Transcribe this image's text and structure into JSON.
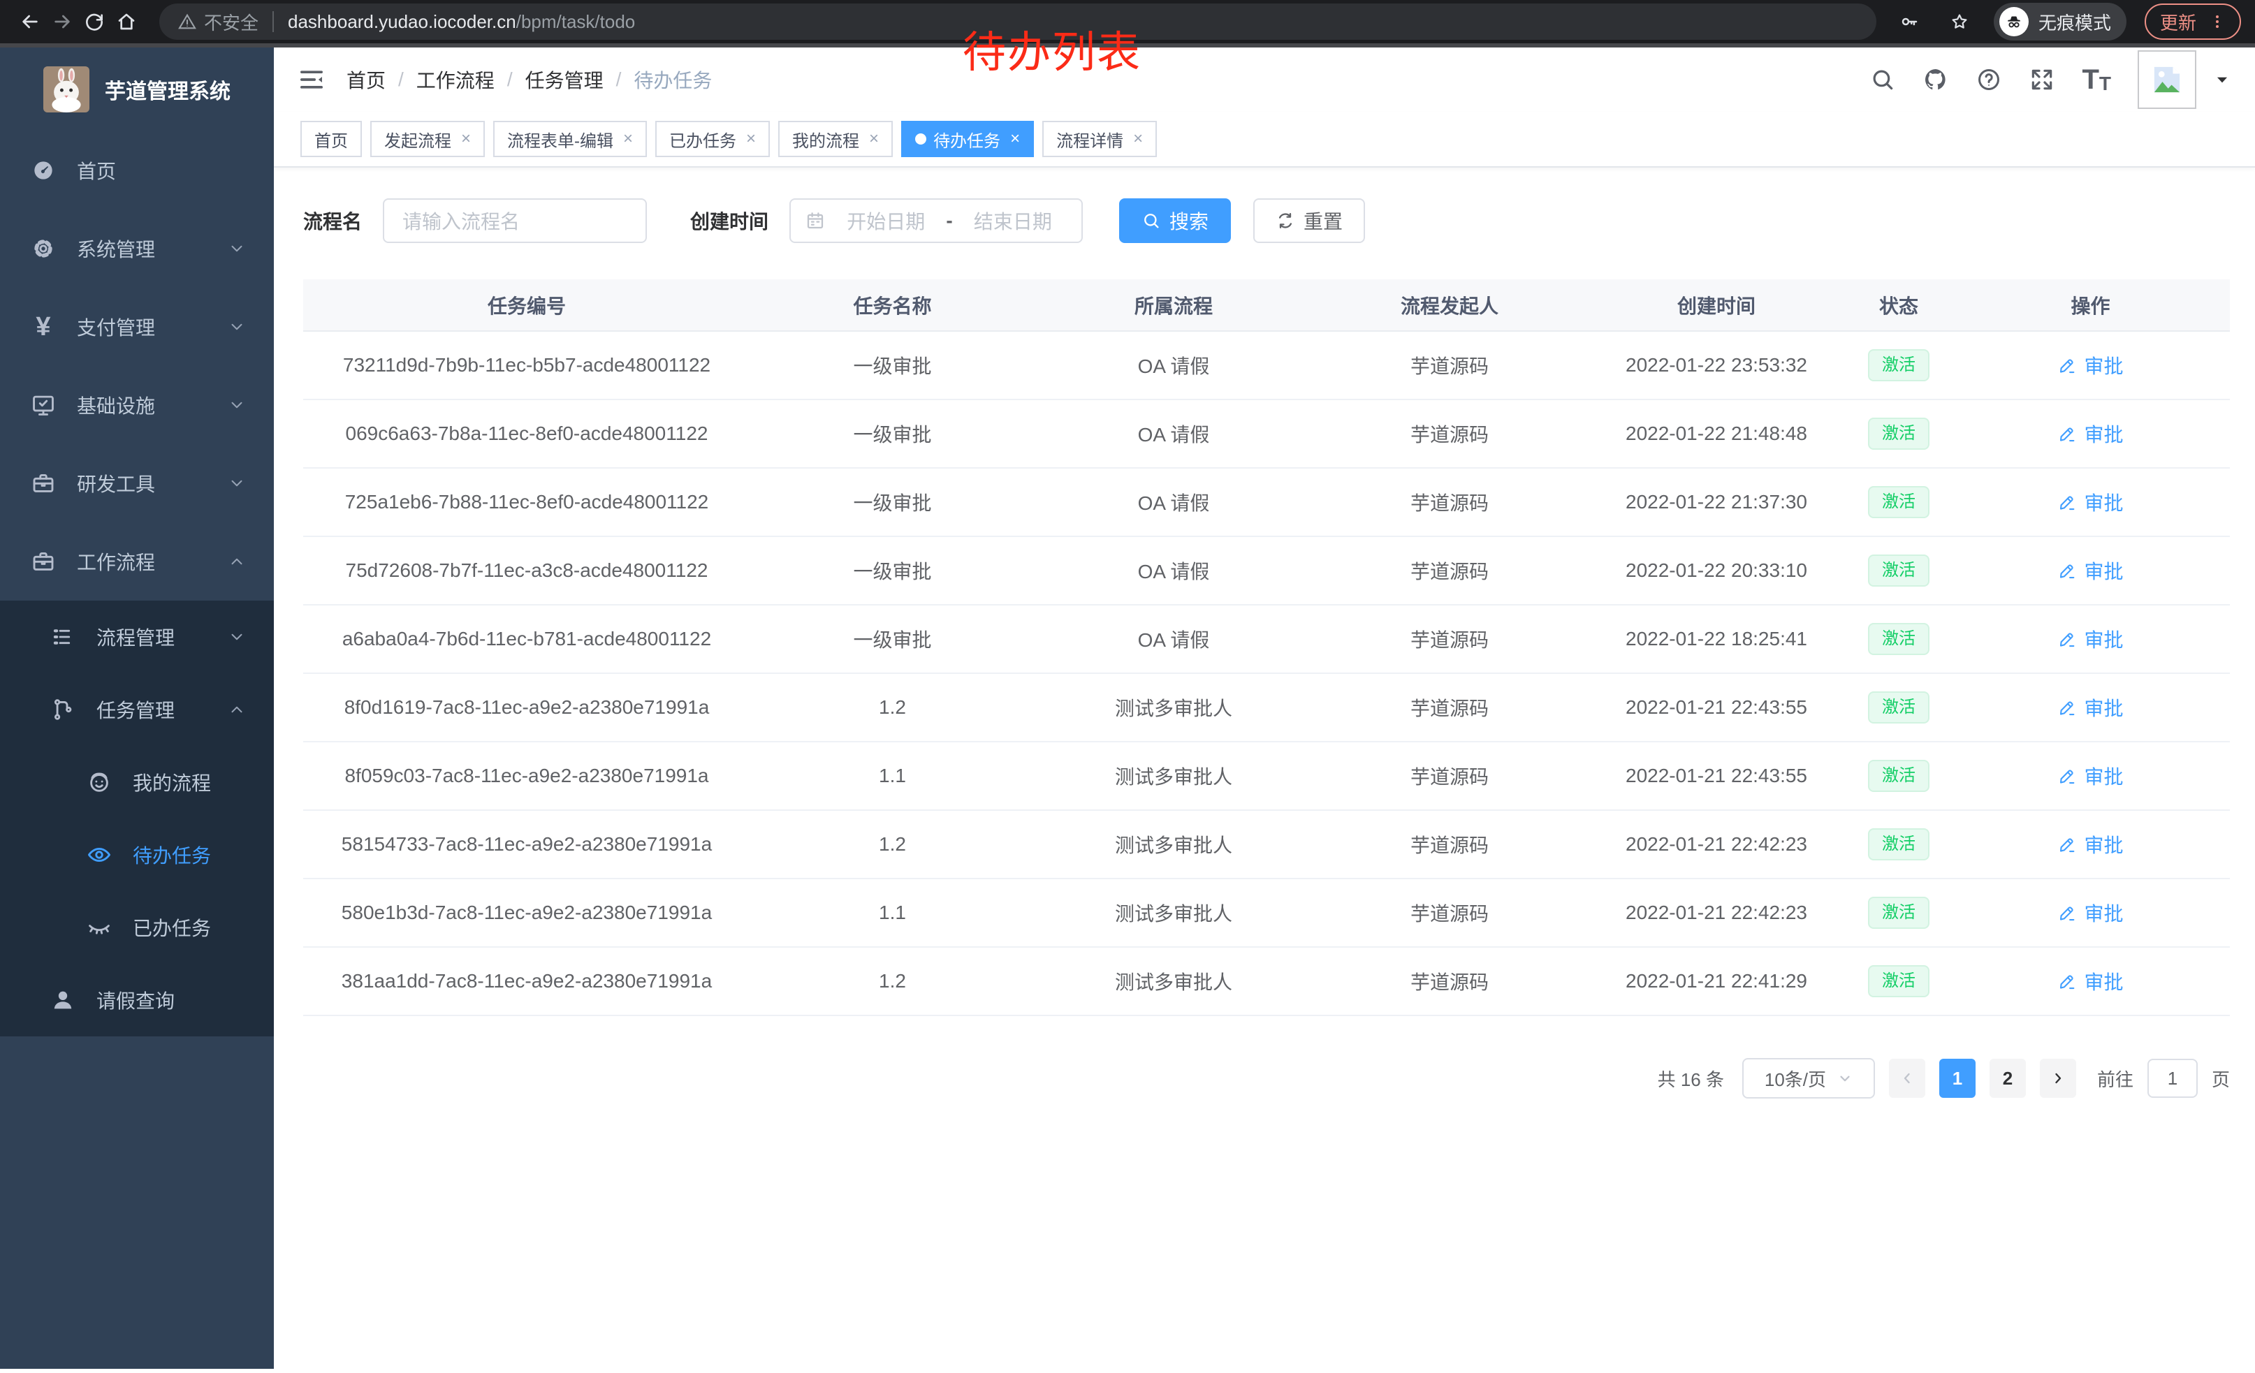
{
  "colors": {
    "accent": "#409eff",
    "success": "#13ce66",
    "annotation_red": "#fb2b17",
    "sidebar_bg": "#304156",
    "submenu_bg": "#1f2d3d"
  },
  "annotation": "待办列表",
  "browser": {
    "security_label": "不安全",
    "url_host": "dashboard.yudao.iocoder.cn",
    "url_path": "/bpm/task/todo",
    "incognito_label": "无痕模式",
    "update_label": "更新",
    "nav_icons": [
      "back-icon",
      "forward-icon",
      "reload-icon",
      "home-icon"
    ],
    "right_icons": [
      "key-icon",
      "star-icon",
      "incognito-icon",
      "menu-dots-icon"
    ]
  },
  "sidebar": {
    "title": "芋道管理系统",
    "logo_icon": "rabbit-avatar",
    "items": [
      {
        "label": "首页",
        "icon": "dashboard",
        "level": 1
      },
      {
        "label": "系统管理",
        "icon": "gear",
        "level": 1,
        "chevron": "down"
      },
      {
        "label": "支付管理",
        "icon": "yen",
        "level": 1,
        "chevron": "down"
      },
      {
        "label": "基础设施",
        "icon": "monitor",
        "level": 1,
        "chevron": "down"
      },
      {
        "label": "研发工具",
        "icon": "briefcase",
        "level": 1,
        "chevron": "down"
      },
      {
        "label": "工作流程",
        "icon": "briefcase",
        "level": 1,
        "chevron": "up"
      },
      {
        "label": "流程管理",
        "icon": "list",
        "level": 2,
        "chevron": "down",
        "dark": true
      },
      {
        "label": "任务管理",
        "icon": "flow",
        "level": 2,
        "chevron": "up",
        "dark": true
      },
      {
        "label": "我的流程",
        "icon": "face",
        "level": 3,
        "dark": true
      },
      {
        "label": "待办任务",
        "icon": "eye",
        "level": 3,
        "dark": true,
        "active": true
      },
      {
        "label": "已办任务",
        "icon": "eye-closed",
        "level": 3,
        "dark": true
      },
      {
        "label": "请假查询",
        "icon": "user",
        "level": 2,
        "dark": true
      }
    ]
  },
  "header": {
    "breadcrumbs": [
      "首页",
      "工作流程",
      "任务管理",
      "待办任务"
    ],
    "right_icons": [
      "search-icon",
      "github-icon",
      "question-icon",
      "fullscreen-icon",
      "text-size-icon",
      "avatar",
      "caret-down-icon"
    ]
  },
  "tabs": [
    {
      "label": "首页"
    },
    {
      "label": "发起流程",
      "closable": true
    },
    {
      "label": "流程表单-编辑",
      "closable": true
    },
    {
      "label": "已办任务",
      "closable": true
    },
    {
      "label": "我的流程",
      "closable": true
    },
    {
      "label": "待办任务",
      "closable": true,
      "active": true
    },
    {
      "label": "流程详情",
      "closable": true
    }
  ],
  "filters": {
    "name_label": "流程名",
    "name_placeholder": "请输入流程名",
    "time_label": "创建时间",
    "start_placeholder": "开始日期",
    "range_separator": "-",
    "end_placeholder": "结束日期",
    "search_label": "搜索",
    "reset_label": "重置"
  },
  "table": {
    "columns": [
      "任务编号",
      "任务名称",
      "所属流程",
      "流程发起人",
      "创建时间",
      "状态",
      "操作"
    ],
    "rows": [
      {
        "id": "73211d9d-7b9b-11ec-b5b7-acde48001122",
        "name": "一级审批",
        "process": "OA 请假",
        "initiator": "芋道源码",
        "created": "2022-01-22 23:53:32",
        "status": "激活",
        "action": "审批"
      },
      {
        "id": "069c6a63-7b8a-11ec-8ef0-acde48001122",
        "name": "一级审批",
        "process": "OA 请假",
        "initiator": "芋道源码",
        "created": "2022-01-22 21:48:48",
        "status": "激活",
        "action": "审批"
      },
      {
        "id": "725a1eb6-7b88-11ec-8ef0-acde48001122",
        "name": "一级审批",
        "process": "OA 请假",
        "initiator": "芋道源码",
        "created": "2022-01-22 21:37:30",
        "status": "激活",
        "action": "审批"
      },
      {
        "id": "75d72608-7b7f-11ec-a3c8-acde48001122",
        "name": "一级审批",
        "process": "OA 请假",
        "initiator": "芋道源码",
        "created": "2022-01-22 20:33:10",
        "status": "激活",
        "action": "审批"
      },
      {
        "id": "a6aba0a4-7b6d-11ec-b781-acde48001122",
        "name": "一级审批",
        "process": "OA 请假",
        "initiator": "芋道源码",
        "created": "2022-01-22 18:25:41",
        "status": "激活",
        "action": "审批"
      },
      {
        "id": "8f0d1619-7ac8-11ec-a9e2-a2380e71991a",
        "name": "1.2",
        "process": "测试多审批人",
        "initiator": "芋道源码",
        "created": "2022-01-21 22:43:55",
        "status": "激活",
        "action": "审批"
      },
      {
        "id": "8f059c03-7ac8-11ec-a9e2-a2380e71991a",
        "name": "1.1",
        "process": "测试多审批人",
        "initiator": "芋道源码",
        "created": "2022-01-21 22:43:55",
        "status": "激活",
        "action": "审批"
      },
      {
        "id": "58154733-7ac8-11ec-a9e2-a2380e71991a",
        "name": "1.2",
        "process": "测试多审批人",
        "initiator": "芋道源码",
        "created": "2022-01-21 22:42:23",
        "status": "激活",
        "action": "审批"
      },
      {
        "id": "580e1b3d-7ac8-11ec-a9e2-a2380e71991a",
        "name": "1.1",
        "process": "测试多审批人",
        "initiator": "芋道源码",
        "created": "2022-01-21 22:42:23",
        "status": "激活",
        "action": "审批"
      },
      {
        "id": "381aa1dd-7ac8-11ec-a9e2-a2380e71991a",
        "name": "1.2",
        "process": "测试多审批人",
        "initiator": "芋道源码",
        "created": "2022-01-21 22:41:29",
        "status": "激活",
        "action": "审批"
      }
    ]
  },
  "pagination": {
    "total_text": "共 16 条",
    "page_size": "10条/页",
    "pages": [
      "1",
      "2"
    ],
    "active_page": "1",
    "goto_label": "前往",
    "goto_value": "1",
    "page_unit": "页"
  }
}
